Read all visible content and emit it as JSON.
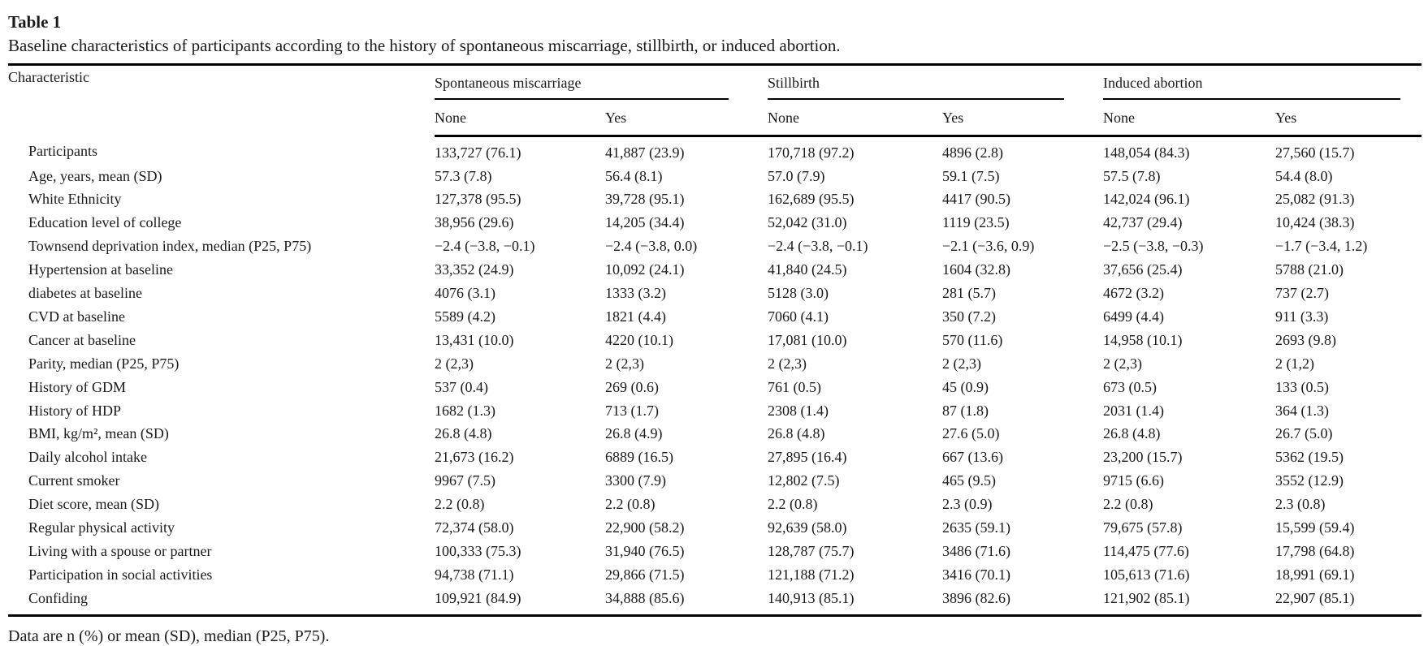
{
  "title": "Table 1",
  "caption": "Baseline characteristics of participants according to the history of spontaneous miscarriage, stillbirth, or induced abortion.",
  "footnote": "Data are n (%) or mean (SD), median (P25, P75).",
  "colors": {
    "text": "#1a1a1a",
    "rule": "#000000",
    "background": "#ffffff"
  },
  "table": {
    "characteristic_header": "Characteristic",
    "groups": [
      {
        "label": "Spontaneous miscarriage",
        "sub": [
          "None",
          "Yes"
        ]
      },
      {
        "label": "Stillbirth",
        "sub": [
          "None",
          "Yes"
        ]
      },
      {
        "label": "Induced abortion",
        "sub": [
          "None",
          "Yes"
        ]
      }
    ],
    "rows": [
      {
        "label": "Participants",
        "values": [
          "133,727 (76.1)",
          "41,887 (23.9)",
          "170,718 (97.2)",
          "4896 (2.8)",
          "148,054 (84.3)",
          "27,560 (15.7)"
        ]
      },
      {
        "label": "Age, years, mean (SD)",
        "values": [
          "57.3 (7.8)",
          "56.4 (8.1)",
          "57.0 (7.9)",
          "59.1 (7.5)",
          "57.5 (7.8)",
          "54.4 (8.0)"
        ]
      },
      {
        "label": "White Ethnicity",
        "values": [
          "127,378 (95.5)",
          "39,728 (95.1)",
          "162,689 (95.5)",
          "4417 (90.5)",
          "142,024 (96.1)",
          "25,082 (91.3)"
        ]
      },
      {
        "label": "Education level of college",
        "values": [
          "38,956 (29.6)",
          "14,205 (34.4)",
          "52,042 (31.0)",
          "1119 (23.5)",
          "42,737 (29.4)",
          "10,424 (38.3)"
        ]
      },
      {
        "label": "Townsend deprivation index, median (P25, P75)",
        "values": [
          "−2.4 (−3.8, −0.1)",
          "−2.4 (−3.8, 0.0)",
          "−2.4 (−3.8, −0.1)",
          "−2.1 (−3.6, 0.9)",
          "−2.5 (−3.8, −0.3)",
          "−1.7 (−3.4, 1.2)"
        ]
      },
      {
        "label": "Hypertension at baseline",
        "values": [
          "33,352 (24.9)",
          "10,092 (24.1)",
          "41,840 (24.5)",
          "1604 (32.8)",
          "37,656 (25.4)",
          "5788 (21.0)"
        ]
      },
      {
        "label": "diabetes at baseline",
        "values": [
          "4076 (3.1)",
          "1333 (3.2)",
          "5128 (3.0)",
          "281 (5.7)",
          "4672 (3.2)",
          "737 (2.7)"
        ]
      },
      {
        "label": "CVD at baseline",
        "values": [
          "5589 (4.2)",
          "1821 (4.4)",
          "7060 (4.1)",
          "350 (7.2)",
          "6499 (4.4)",
          "911 (3.3)"
        ]
      },
      {
        "label": "Cancer at baseline",
        "values": [
          "13,431 (10.0)",
          "4220 (10.1)",
          "17,081 (10.0)",
          "570 (11.6)",
          "14,958 (10.1)",
          "2693 (9.8)"
        ]
      },
      {
        "label": "Parity, median (P25, P75)",
        "values": [
          "2 (2,3)",
          "2 (2,3)",
          "2 (2,3)",
          "2 (2,3)",
          "2 (2,3)",
          "2 (1,2)"
        ]
      },
      {
        "label": "History of GDM",
        "values": [
          "537 (0.4)",
          "269 (0.6)",
          "761 (0.5)",
          "45 (0.9)",
          "673 (0.5)",
          "133 (0.5)"
        ]
      },
      {
        "label": "History of HDP",
        "values": [
          "1682 (1.3)",
          "713 (1.7)",
          "2308 (1.4)",
          "87 (1.8)",
          "2031 (1.4)",
          "364 (1.3)"
        ]
      },
      {
        "label": "BMI, kg/m², mean (SD)",
        "values": [
          "26.8 (4.8)",
          "26.8 (4.9)",
          "26.8 (4.8)",
          "27.6 (5.0)",
          "26.8 (4.8)",
          "26.7 (5.0)"
        ]
      },
      {
        "label": "Daily alcohol intake",
        "values": [
          "21,673 (16.2)",
          "6889 (16.5)",
          "27,895 (16.4)",
          "667 (13.6)",
          "23,200 (15.7)",
          "5362 (19.5)"
        ]
      },
      {
        "label": "Current smoker",
        "values": [
          "9967 (7.5)",
          "3300 (7.9)",
          "12,802 (7.5)",
          "465 (9.5)",
          "9715 (6.6)",
          "3552 (12.9)"
        ]
      },
      {
        "label": "Diet score, mean (SD)",
        "values": [
          "2.2 (0.8)",
          "2.2 (0.8)",
          "2.2 (0.8)",
          "2.3 (0.9)",
          "2.2 (0.8)",
          "2.3 (0.8)"
        ]
      },
      {
        "label": "Regular physical activity",
        "values": [
          "72,374 (58.0)",
          "22,900 (58.2)",
          "92,639 (58.0)",
          "2635 (59.1)",
          "79,675 (57.8)",
          "15,599 (59.4)"
        ]
      },
      {
        "label": "Living with a spouse or partner",
        "values": [
          "100,333 (75.3)",
          "31,940 (76.5)",
          "128,787 (75.7)",
          "3486 (71.6)",
          "114,475 (77.6)",
          "17,798 (64.8)"
        ]
      },
      {
        "label": "Participation in social activities",
        "values": [
          "94,738 (71.1)",
          "29,866 (71.5)",
          "121,188 (71.2)",
          "3416 (70.1)",
          "105,613 (71.6)",
          "18,991 (69.1)"
        ]
      },
      {
        "label": "Confiding",
        "values": [
          "109,921 (84.9)",
          "34,888 (85.6)",
          "140,913 (85.1)",
          "3896 (82.6)",
          "121,902 (85.1)",
          "22,907 (85.1)"
        ]
      }
    ]
  }
}
